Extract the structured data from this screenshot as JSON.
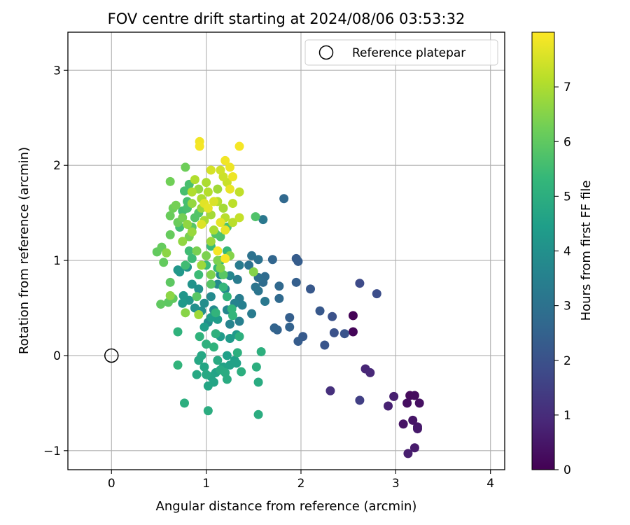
{
  "chart_data": {
    "type": "scatter",
    "title": "FOV centre drift starting at 2024/08/06 03:53:32",
    "xlabel": "Angular distance from reference (arcmin)",
    "ylabel": "Rotation from reference (arcmin)",
    "xlim": [
      -0.46,
      4.15
    ],
    "ylim": [
      -1.2,
      3.4
    ],
    "x_ticks": [
      0,
      1,
      2,
      3,
      4
    ],
    "y_ticks": [
      -1,
      0,
      1,
      2,
      3
    ],
    "grid": true,
    "legend": {
      "placement": "top-right",
      "entries": [
        {
          "label": "Reference platepar",
          "marker": "open-circle"
        }
      ]
    },
    "reference_point": {
      "label": "Reference platepar",
      "x": 0,
      "y": 0
    },
    "colorbar": {
      "label": "Hours from first FF file",
      "colormap": "viridis",
      "range": [
        0,
        8
      ],
      "ticks": [
        0,
        1,
        2,
        3,
        4,
        5,
        6,
        7
      ]
    },
    "colormap_stops": [
      "#440154",
      "#482878",
      "#3e4a89",
      "#31688e",
      "#26828e",
      "#1f9e89",
      "#35b779",
      "#6ece58",
      "#b5de2b",
      "#fde725"
    ],
    "series": [
      {
        "points": [
          [
            2.55,
            0.42,
            0.05
          ],
          [
            2.55,
            0.25,
            0.1
          ],
          [
            3.15,
            -0.42,
            0.2
          ],
          [
            3.2,
            -0.42,
            0.25
          ],
          [
            3.12,
            -0.5,
            0.3
          ],
          [
            3.25,
            -0.5,
            0.35
          ],
          [
            3.08,
            -0.72,
            0.4
          ],
          [
            3.18,
            -0.68,
            0.45
          ],
          [
            3.23,
            -0.75,
            0.5
          ],
          [
            3.23,
            -0.77,
            0.55
          ],
          [
            3.2,
            -0.97,
            0.6
          ],
          [
            3.13,
            -1.03,
            0.65
          ],
          [
            2.98,
            -0.43,
            0.7
          ],
          [
            2.92,
            -0.53,
            0.75
          ],
          [
            2.68,
            -0.14,
            0.85
          ],
          [
            2.73,
            -0.18,
            0.9
          ],
          [
            2.31,
            -0.37,
            1.1
          ],
          [
            2.62,
            -0.47,
            1.5
          ],
          [
            2.62,
            0.76,
            1.8
          ],
          [
            2.8,
            0.65,
            1.9
          ],
          [
            2.33,
            0.41,
            2.0
          ],
          [
            2.35,
            0.24,
            2.0
          ],
          [
            2.46,
            0.23,
            2.05
          ],
          [
            2.25,
            0.11,
            2.1
          ],
          [
            2.2,
            0.47,
            2.2
          ],
          [
            2.1,
            0.7,
            2.2
          ],
          [
            2.02,
            0.2,
            2.25
          ],
          [
            1.97,
            0.15,
            2.3
          ],
          [
            1.95,
            1.02,
            2.3
          ],
          [
            1.97,
            0.99,
            2.35
          ],
          [
            1.95,
            0.77,
            2.4
          ],
          [
            1.88,
            0.4,
            2.4
          ],
          [
            1.88,
            0.3,
            2.5
          ],
          [
            1.75,
            0.27,
            2.5
          ],
          [
            1.72,
            0.29,
            2.55
          ],
          [
            1.7,
            1.01,
            2.6
          ],
          [
            1.82,
            1.65,
            2.7
          ],
          [
            1.77,
            0.73,
            2.7
          ],
          [
            1.77,
            0.6,
            2.75
          ],
          [
            1.62,
            0.83,
            2.8
          ],
          [
            1.6,
            0.77,
            2.85
          ],
          [
            1.55,
            0.82,
            2.9
          ],
          [
            1.55,
            1.01,
            3.0
          ],
          [
            1.48,
            1.05,
            3.0
          ],
          [
            1.45,
            0.95,
            3.05
          ],
          [
            1.52,
            0.72,
            3.1
          ],
          [
            1.55,
            0.68,
            3.1
          ],
          [
            1.6,
            1.43,
            3.2
          ],
          [
            1.62,
            0.57,
            3.2
          ],
          [
            1.48,
            0.44,
            3.3
          ],
          [
            1.35,
            0.95,
            3.3
          ],
          [
            1.33,
            0.8,
            3.35
          ],
          [
            1.35,
            0.6,
            3.4
          ],
          [
            1.38,
            0.53,
            3.45
          ],
          [
            1.35,
            0.36,
            3.5
          ],
          [
            1.3,
            0.55,
            3.55
          ],
          [
            1.25,
            0.33,
            3.6
          ],
          [
            1.2,
            0.7,
            3.65
          ],
          [
            1.22,
            0.48,
            3.7
          ],
          [
            1.25,
            0.84,
            3.7
          ],
          [
            1.15,
            0.85,
            3.75
          ],
          [
            1.12,
            0.75,
            3.8
          ],
          [
            1.05,
            0.62,
            3.8
          ],
          [
            1.08,
            0.48,
            3.85
          ],
          [
            1.02,
            0.35,
            3.9
          ],
          [
            0.98,
            0.55,
            3.9
          ],
          [
            0.95,
            0.47,
            3.95
          ],
          [
            0.88,
            0.5,
            4.0
          ],
          [
            0.92,
            0.7,
            4.0
          ],
          [
            0.8,
            0.93,
            4.05
          ],
          [
            0.85,
            0.75,
            4.1
          ],
          [
            0.82,
            0.58,
            4.15
          ],
          [
            0.76,
            0.63,
            4.2
          ],
          [
            0.7,
            0.9,
            4.2
          ],
          [
            0.72,
            0.88,
            4.25
          ],
          [
            0.75,
            0.55,
            4.3
          ],
          [
            1.32,
            0.22,
            4.3
          ],
          [
            1.25,
            0.18,
            4.35
          ],
          [
            1.15,
            0.2,
            4.35
          ],
          [
            1.12,
            0.38,
            4.4
          ],
          [
            1.05,
            0.4,
            4.4
          ],
          [
            0.98,
            0.3,
            4.45
          ],
          [
            1.22,
            0.0,
            4.5
          ],
          [
            1.3,
            -0.05,
            4.5
          ],
          [
            1.32,
            -0.08,
            4.55
          ],
          [
            1.25,
            -0.1,
            4.55
          ],
          [
            1.18,
            -0.12,
            4.6
          ],
          [
            1.1,
            -0.18,
            4.6
          ],
          [
            1.05,
            -0.22,
            4.65
          ],
          [
            1.08,
            -0.28,
            4.65
          ],
          [
            1.02,
            -0.32,
            4.7
          ],
          [
            0.98,
            -0.12,
            4.7
          ],
          [
            0.95,
            0.0,
            4.75
          ],
          [
            0.92,
            -0.05,
            4.75
          ],
          [
            0.9,
            -0.2,
            4.8
          ],
          [
            1.0,
            -0.2,
            4.8
          ],
          [
            1.12,
            -0.05,
            4.85
          ],
          [
            1.15,
            -0.15,
            4.85
          ],
          [
            1.2,
            -0.18,
            4.9
          ],
          [
            1.22,
            -0.25,
            4.9
          ],
          [
            1.55,
            -0.28,
            4.9
          ],
          [
            1.55,
            -0.62,
            4.95
          ],
          [
            1.02,
            -0.58,
            4.95
          ],
          [
            0.77,
            -0.5,
            5.0
          ],
          [
            1.53,
            -0.12,
            5.0
          ],
          [
            1.37,
            -0.17,
            5.0
          ],
          [
            1.33,
            0.03,
            5.05
          ],
          [
            1.58,
            0.04,
            5.05
          ],
          [
            1.35,
            0.2,
            5.05
          ],
          [
            1.1,
            0.23,
            5.1
          ],
          [
            1.0,
            0.12,
            5.1
          ],
          [
            0.93,
            0.2,
            5.15
          ],
          [
            1.08,
            0.09,
            5.15
          ],
          [
            0.7,
            0.25,
            5.15
          ],
          [
            0.7,
            -0.1,
            5.2
          ],
          [
            1.1,
            0.45,
            5.2
          ],
          [
            1.22,
            0.62,
            5.2
          ],
          [
            1.27,
            0.49,
            5.25
          ],
          [
            1.28,
            0.42,
            5.25
          ],
          [
            1.18,
            0.72,
            5.3
          ],
          [
            1.15,
            1.0,
            5.3
          ],
          [
            1.12,
            0.92,
            5.35
          ],
          [
            1.22,
            1.1,
            5.35
          ],
          [
            1.05,
            1.15,
            5.4
          ],
          [
            1.0,
            0.95,
            5.4
          ],
          [
            0.92,
            0.85,
            5.45
          ],
          [
            0.85,
            1.02,
            5.45
          ],
          [
            0.82,
            1.1,
            5.5
          ],
          [
            0.78,
            0.95,
            5.5
          ],
          [
            0.72,
            1.35,
            5.55
          ],
          [
            0.75,
            1.52,
            5.55
          ],
          [
            0.8,
            1.62,
            5.6
          ],
          [
            0.77,
            1.73,
            5.6
          ],
          [
            0.82,
            1.8,
            5.65
          ],
          [
            0.8,
            1.55,
            5.65
          ],
          [
            1.22,
            1.35,
            5.7
          ],
          [
            1.15,
            1.25,
            5.7
          ],
          [
            1.1,
            1.28,
            5.75
          ],
          [
            1.52,
            1.46,
            5.75
          ],
          [
            0.92,
            1.5,
            5.8
          ],
          [
            0.88,
            1.45,
            5.8
          ],
          [
            0.85,
            1.35,
            5.85
          ],
          [
            1.05,
            0.75,
            5.85
          ],
          [
            1.18,
            0.85,
            5.9
          ],
          [
            0.9,
            0.62,
            5.9
          ],
          [
            0.62,
            0.77,
            5.95
          ],
          [
            0.6,
            0.56,
            5.95
          ],
          [
            0.65,
            0.6,
            6.0
          ],
          [
            0.52,
            0.54,
            6.0
          ],
          [
            0.55,
            0.98,
            6.05
          ],
          [
            0.48,
            1.09,
            6.05
          ],
          [
            0.53,
            1.14,
            6.1
          ],
          [
            0.62,
            1.27,
            6.1
          ],
          [
            0.62,
            1.47,
            6.15
          ],
          [
            0.7,
            1.4,
            6.15
          ],
          [
            0.65,
            1.55,
            6.2
          ],
          [
            0.78,
            1.98,
            6.2
          ],
          [
            0.62,
            1.83,
            6.25
          ],
          [
            0.68,
            1.58,
            6.3
          ],
          [
            0.75,
            1.45,
            6.3
          ],
          [
            0.82,
            1.25,
            6.35
          ],
          [
            0.9,
            1.1,
            6.35
          ],
          [
            1.0,
            1.05,
            6.4
          ],
          [
            1.12,
            1.0,
            6.4
          ],
          [
            1.05,
            0.85,
            6.45
          ],
          [
            1.15,
            0.92,
            6.45
          ],
          [
            1.25,
            1.05,
            6.5
          ],
          [
            1.5,
            0.88,
            6.5
          ],
          [
            0.78,
            0.45,
            6.55
          ],
          [
            0.62,
            0.63,
            6.6
          ],
          [
            0.58,
            1.08,
            6.6
          ],
          [
            0.75,
            1.2,
            6.65
          ],
          [
            0.8,
            1.38,
            6.65
          ],
          [
            0.85,
            1.6,
            6.7
          ],
          [
            0.92,
            1.75,
            6.7
          ],
          [
            0.95,
            1.55,
            6.75
          ],
          [
            0.85,
            1.3,
            6.75
          ],
          [
            0.95,
            0.95,
            6.8
          ],
          [
            1.05,
            1.2,
            6.8
          ],
          [
            0.92,
            0.43,
            6.85
          ],
          [
            1.12,
            1.75,
            6.85
          ],
          [
            1.18,
            1.55,
            6.9
          ],
          [
            1.05,
            1.48,
            6.9
          ],
          [
            0.98,
            1.42,
            6.95
          ],
          [
            1.08,
            1.32,
            6.95
          ],
          [
            0.95,
            1.65,
            7.0
          ],
          [
            1.0,
            1.82,
            7.0
          ],
          [
            0.88,
            1.85,
            7.05
          ],
          [
            0.85,
            1.72,
            7.05
          ],
          [
            1.02,
            1.72,
            7.1
          ],
          [
            1.12,
            1.62,
            7.1
          ],
          [
            1.2,
            1.45,
            7.15
          ],
          [
            1.28,
            1.4,
            7.15
          ],
          [
            1.28,
            1.6,
            7.2
          ],
          [
            1.35,
            1.72,
            7.25
          ],
          [
            1.35,
            1.45,
            7.3
          ],
          [
            1.22,
            1.82,
            7.35
          ],
          [
            1.18,
            1.88,
            7.4
          ],
          [
            1.15,
            1.95,
            7.45
          ],
          [
            1.05,
            1.95,
            7.5
          ],
          [
            1.08,
            1.62,
            7.55
          ],
          [
            0.95,
            1.38,
            7.6
          ],
          [
            0.98,
            1.6,
            7.65
          ],
          [
            1.02,
            1.55,
            7.7
          ],
          [
            1.15,
            1.4,
            7.7
          ],
          [
            1.2,
            1.32,
            7.75
          ],
          [
            1.25,
            1.75,
            7.75
          ],
          [
            1.28,
            1.88,
            7.8
          ],
          [
            1.25,
            1.98,
            7.8
          ],
          [
            1.2,
            2.05,
            7.85
          ],
          [
            0.93,
            2.25,
            7.85
          ],
          [
            0.93,
            2.2,
            7.9
          ],
          [
            1.35,
            2.2,
            7.9
          ],
          [
            1.12,
            1.1,
            7.9
          ],
          [
            1.2,
            1.02,
            7.95
          ]
        ]
      }
    ]
  }
}
